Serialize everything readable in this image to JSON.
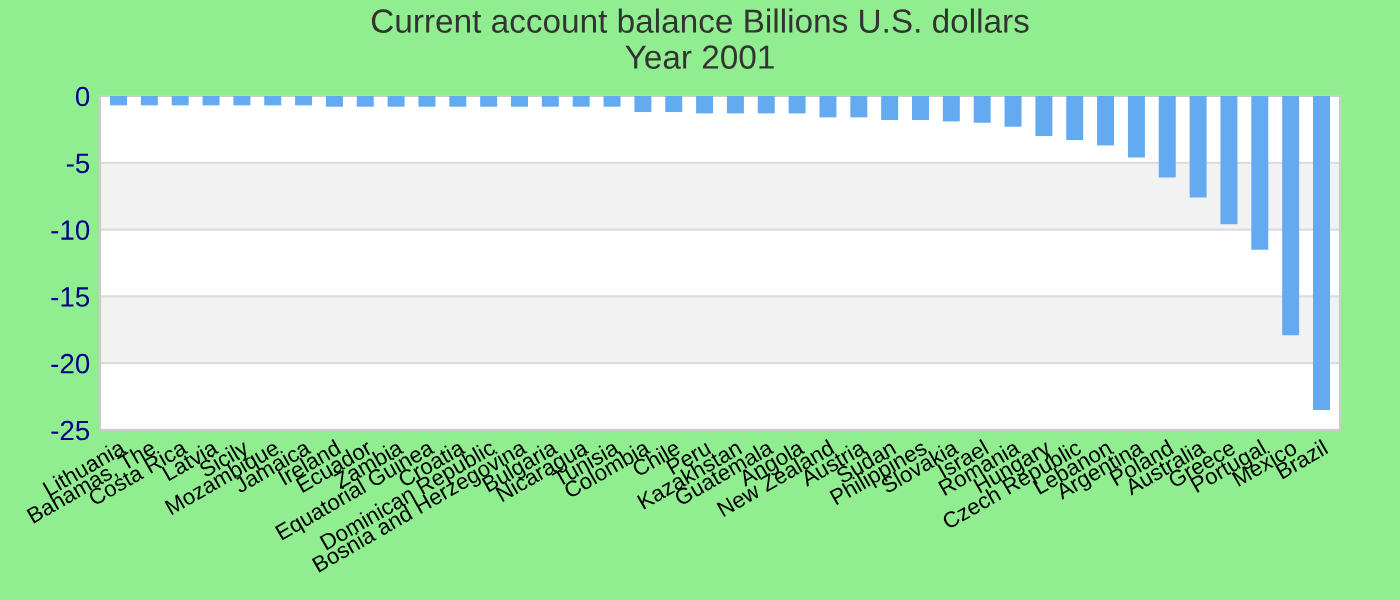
{
  "chart_data": {
    "type": "bar",
    "title": "Current account balance Billions U.S. dollars",
    "subtitle": "Year 2001",
    "categories": [
      "Lithuania",
      "Bahamas, The",
      "Costa Rica",
      "Latvia",
      "Sicily",
      "Mozambique",
      "Jamaica",
      "Ireland",
      "Ecuador",
      "Zambia",
      "Equatorial Guinea",
      "Croatia",
      "Dominican Republic",
      "Bosnia and Herzegovina",
      "Bulgaria",
      "Nicaragua",
      "Tunisia",
      "Colombia",
      "Chile",
      "Peru",
      "Kazakhstan",
      "Guatemala",
      "Angola",
      "New Zealand",
      "Austria",
      "Sudan",
      "Philippines",
      "Slovakia",
      "Israel",
      "Romania",
      "Hungary",
      "Czech Republic",
      "Lebanon",
      "Argentina",
      "Poland",
      "Australia",
      "Greece",
      "Portugal",
      "Mexico",
      "Brazil"
    ],
    "values": [
      -0.7,
      -0.7,
      -0.7,
      -0.7,
      -0.7,
      -0.7,
      -0.7,
      -0.8,
      -0.8,
      -0.8,
      -0.8,
      -0.8,
      -0.8,
      -0.8,
      -0.8,
      -0.8,
      -0.8,
      -1.2,
      -1.2,
      -1.3,
      -1.3,
      -1.3,
      -1.3,
      -1.6,
      -1.6,
      -1.8,
      -1.8,
      -1.9,
      -2.0,
      -2.3,
      -3.0,
      -3.3,
      -3.7,
      -4.6,
      -6.1,
      -7.6,
      -9.6,
      -11.5,
      -17.9,
      -23.5
    ],
    "color": "#64aaf0",
    "ylim": [
      -25,
      0
    ],
    "yticks": [
      -25,
      -20,
      -15,
      -10,
      -5,
      0
    ],
    "grid": "y"
  }
}
